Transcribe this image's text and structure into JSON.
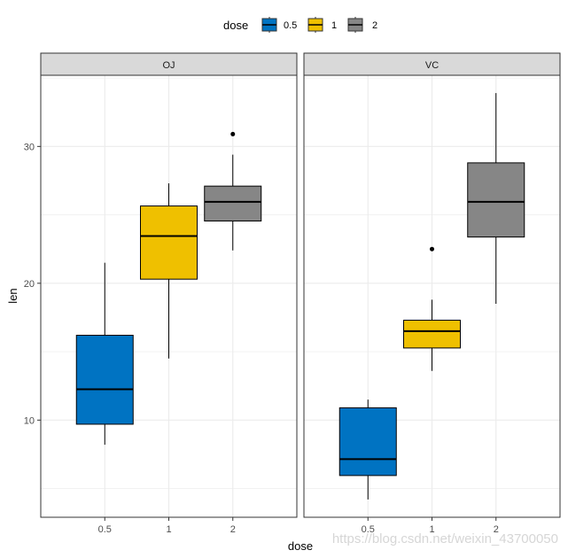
{
  "chart_data": {
    "type": "boxplot",
    "facet_variable": "supp",
    "facets": [
      {
        "label": "OJ",
        "boxes": [
          {
            "dose": "0.5",
            "lower_whisker": 8.2,
            "q1": 9.7,
            "median": 12.25,
            "q3": 16.2,
            "upper_whisker": 21.5,
            "outliers": []
          },
          {
            "dose": "1",
            "lower_whisker": 14.5,
            "q1": 20.3,
            "median": 23.45,
            "q3": 25.65,
            "upper_whisker": 27.3,
            "outliers": []
          },
          {
            "dose": "2",
            "lower_whisker": 22.4,
            "q1": 24.55,
            "median": 25.95,
            "q3": 27.1,
            "upper_whisker": 29.4,
            "outliers": [
              30.9
            ]
          }
        ]
      },
      {
        "label": "VC",
        "boxes": [
          {
            "dose": "0.5",
            "lower_whisker": 4.2,
            "q1": 5.95,
            "median": 7.15,
            "q3": 10.9,
            "upper_whisker": 11.5,
            "outliers": []
          },
          {
            "dose": "1",
            "lower_whisker": 13.6,
            "q1": 15.27,
            "median": 16.5,
            "q3": 17.3,
            "upper_whisker": 18.8,
            "outliers": [
              22.5
            ]
          },
          {
            "dose": "2",
            "lower_whisker": 18.5,
            "q1": 23.38,
            "median": 25.95,
            "q3": 28.8,
            "upper_whisker": 33.9,
            "outliers": []
          }
        ]
      }
    ],
    "categories": [
      "0.5",
      "1",
      "2"
    ],
    "xlabel": "dose",
    "ylabel": "len",
    "ylim": [
      2.9,
      35.2
    ],
    "yticks": [
      10,
      20,
      30
    ],
    "ytick_labels": [
      "10",
      "20",
      "30"
    ],
    "grid": true,
    "legend": {
      "title": "dose",
      "position": "top",
      "entries": [
        {
          "label": "0.5",
          "color": "#0073C2"
        },
        {
          "label": "1",
          "color": "#EFC000"
        },
        {
          "label": "2",
          "color": "#868686"
        }
      ]
    },
    "colors": {
      "strip_fill": "#d9d9d9",
      "grid": "#ebebeb",
      "border": "#333333"
    }
  },
  "watermark": "https://blog.csdn.net/weixin_43700050"
}
